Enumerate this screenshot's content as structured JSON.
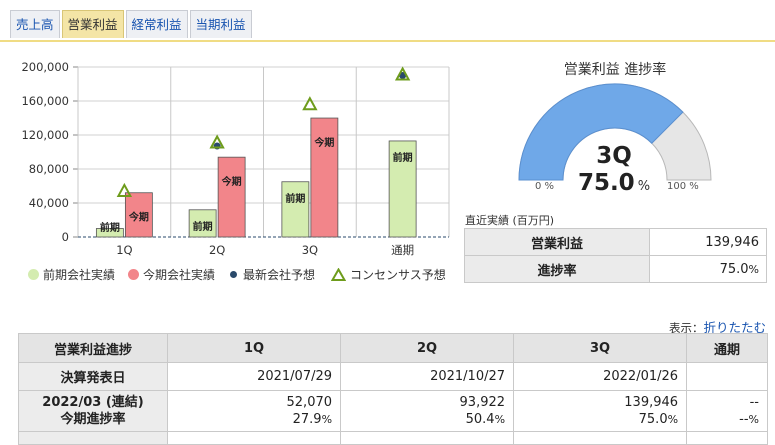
{
  "tabs": [
    "売上高",
    "営業利益",
    "経常利益",
    "当期利益"
  ],
  "active_tab": 1,
  "chart_data": {
    "type": "bar",
    "categories": [
      "1Q",
      "2Q",
      "3Q",
      "通期"
    ],
    "y_ticks": [
      "200,000",
      "160,000",
      "120,000",
      "80,000",
      "40,000",
      "0"
    ],
    "ylim": [
      0,
      200000
    ],
    "series": [
      {
        "name": "前期会社実績",
        "label": "前期",
        "color": "#d4ecb0",
        "values": [
          10000,
          32000,
          65000,
          113000
        ]
      },
      {
        "name": "今期会社実績",
        "label": "今期",
        "color": "#f2858a",
        "values": [
          52070,
          93922,
          139946,
          null
        ]
      }
    ],
    "latest_forecast": {
      "name": "最新会社予想",
      "color": "#2a4a6b",
      "values": [
        null,
        107000,
        null,
        190000
      ]
    },
    "consensus": {
      "name": "コンセンサス予想",
      "color": "#6e9c1c",
      "values": [
        53000,
        110000,
        155000,
        190000
      ]
    }
  },
  "gauge": {
    "title": "営業利益 進捗率",
    "quarter": "3Q",
    "value": "75.0",
    "unit": "%",
    "progress": 75.0,
    "min_label": "0 %",
    "max_label": "100 %",
    "fill_color": "#6fa8e8",
    "rest_color": "#e6e6e6"
  },
  "recent": {
    "caption": "直近実績 (百万円)",
    "rows": [
      {
        "label": "営業利益",
        "value": "139,946",
        "unit": ""
      },
      {
        "label": "進捗率",
        "value": "75.0",
        "unit": "%"
      }
    ]
  },
  "display": {
    "label": "表示：",
    "link": "折りたたむ"
  },
  "progress_table": {
    "headers": [
      "営業利益進捗",
      "1Q",
      "2Q",
      "3Q",
      "通期"
    ],
    "announce_label": "決算発表日",
    "announce_dates": [
      "2021/07/29",
      "2021/10/27",
      "2022/01/26",
      ""
    ],
    "period_label": "2022/03 (連結)",
    "period_sublabel": "今期進捗率",
    "values": [
      "52,070",
      "93,922",
      "139,946",
      "--"
    ],
    "rates": [
      "27.9",
      "50.4",
      "75.0",
      "--"
    ],
    "rate_unit": "%"
  }
}
